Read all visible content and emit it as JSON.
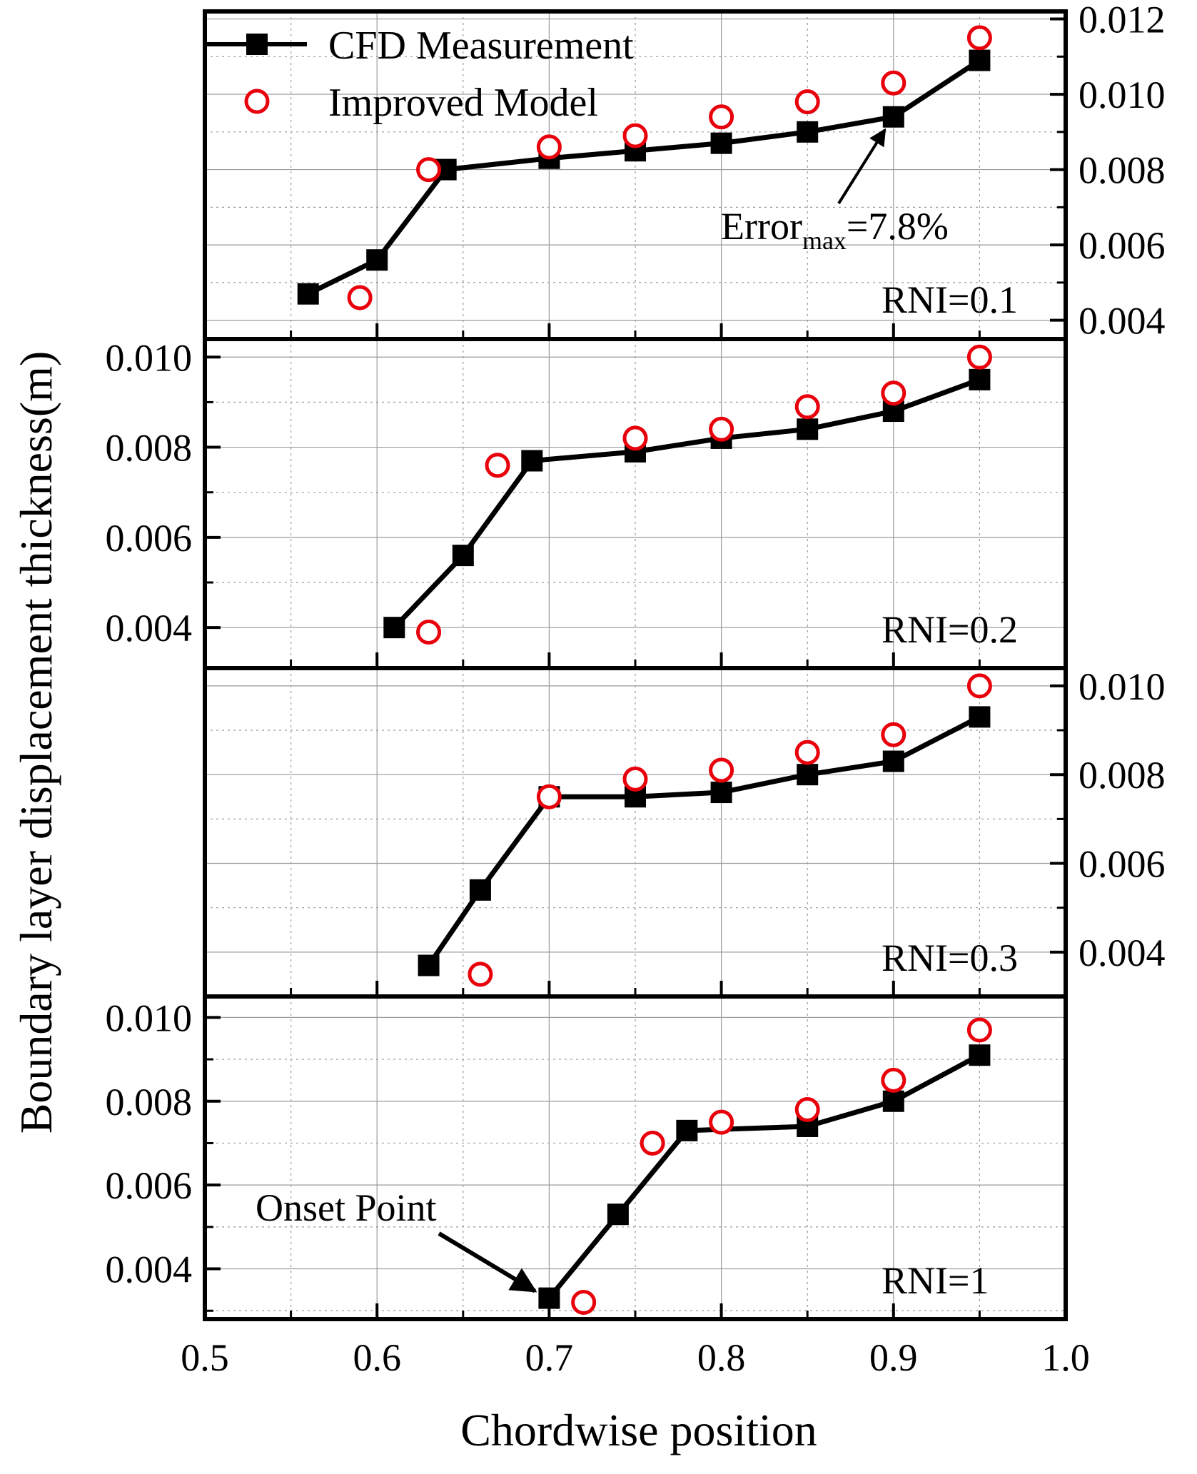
{
  "chart_data": {
    "type": "line",
    "xlabel": "Chordwise position",
    "ylabel": "Boundary layer displacement thickness(m)",
    "xlim": [
      0.5,
      1.0
    ],
    "xticks": [
      "0.5",
      "0.6",
      "0.7",
      "0.8",
      "0.9",
      "1.0"
    ],
    "legend": [
      {
        "name": "CFD Measurement",
        "marker": "square",
        "line": true,
        "color": "#000000"
      },
      {
        "name": "Improved Model",
        "marker": "open-circle",
        "line": false,
        "color": "#e8000b"
      }
    ],
    "panels": [
      {
        "label": "RNI=0.1",
        "yaxis_side": "right",
        "ylim": [
          0.0035,
          0.0122
        ],
        "yticks": [
          "0.004",
          "0.006",
          "0.008",
          "0.010",
          "0.012"
        ],
        "series": [
          {
            "name": "CFD Measurement",
            "x": [
              0.56,
              0.6,
              0.64,
              0.7,
              0.75,
              0.8,
              0.85,
              0.9,
              0.95
            ],
            "y": [
              0.0047,
              0.0056,
              0.008,
              0.0083,
              0.0085,
              0.0087,
              0.009,
              0.0094,
              0.0109
            ]
          },
          {
            "name": "Improved Model",
            "x": [
              0.59,
              0.63,
              0.7,
              0.75,
              0.8,
              0.85,
              0.9,
              0.95
            ],
            "y": [
              0.0046,
              0.008,
              0.0086,
              0.0089,
              0.0094,
              0.0098,
              0.0103,
              0.0115
            ]
          }
        ],
        "annotations": [
          {
            "text_main": "Error",
            "text_sub": "max",
            "text_tail": "=7.8%",
            "points_to": [
              0.9,
              0.0094
            ]
          }
        ]
      },
      {
        "label": "RNI=0.2",
        "yaxis_side": "left",
        "ylim": [
          0.0031,
          0.0104
        ],
        "yticks": [
          "0.004",
          "0.006",
          "0.008",
          "0.010"
        ],
        "series": [
          {
            "name": "CFD Measurement",
            "x": [
              0.61,
              0.65,
              0.69,
              0.75,
              0.8,
              0.85,
              0.9,
              0.95
            ],
            "y": [
              0.004,
              0.0056,
              0.0077,
              0.0079,
              0.0082,
              0.0084,
              0.0088,
              0.0095
            ]
          },
          {
            "name": "Improved Model",
            "x": [
              0.63,
              0.67,
              0.75,
              0.8,
              0.85,
              0.9,
              0.95
            ],
            "y": [
              0.0039,
              0.0076,
              0.0082,
              0.0084,
              0.0089,
              0.0092,
              0.01
            ]
          }
        ]
      },
      {
        "label": "RNI=0.3",
        "yaxis_side": "right",
        "ylim": [
          0.003,
          0.0104
        ],
        "yticks": [
          "0.004",
          "0.006",
          "0.008",
          "0.010"
        ],
        "series": [
          {
            "name": "CFD Measurement",
            "x": [
              0.63,
              0.66,
              0.7,
              0.75,
              0.8,
              0.85,
              0.9,
              0.95
            ],
            "y": [
              0.0037,
              0.0054,
              0.0075,
              0.0075,
              0.0076,
              0.008,
              0.0083,
              0.0093
            ]
          },
          {
            "name": "Improved Model",
            "x": [
              0.66,
              0.7,
              0.75,
              0.8,
              0.85,
              0.9,
              0.95
            ],
            "y": [
              0.0035,
              0.0075,
              0.0079,
              0.0081,
              0.0085,
              0.0089,
              0.01
            ]
          }
        ]
      },
      {
        "label": "RNI=1",
        "yaxis_side": "left",
        "ylim": [
          0.0028,
          0.0105
        ],
        "yticks": [
          "0.004",
          "0.006",
          "0.008",
          "0.010"
        ],
        "series": [
          {
            "name": "CFD Measurement",
            "x": [
              0.7,
              0.74,
              0.78,
              0.85,
              0.9,
              0.95
            ],
            "y": [
              0.0033,
              0.0053,
              0.0073,
              0.0074,
              0.008,
              0.0091
            ]
          },
          {
            "name": "Improved Model",
            "x": [
              0.72,
              0.76,
              0.8,
              0.85,
              0.9,
              0.95
            ],
            "y": [
              0.0032,
              0.007,
              0.0075,
              0.0078,
              0.0085,
              0.0097
            ]
          }
        ],
        "annotations": [
          {
            "text": "Onset Point",
            "points_to": [
              0.7,
              0.0033
            ]
          }
        ]
      }
    ]
  }
}
